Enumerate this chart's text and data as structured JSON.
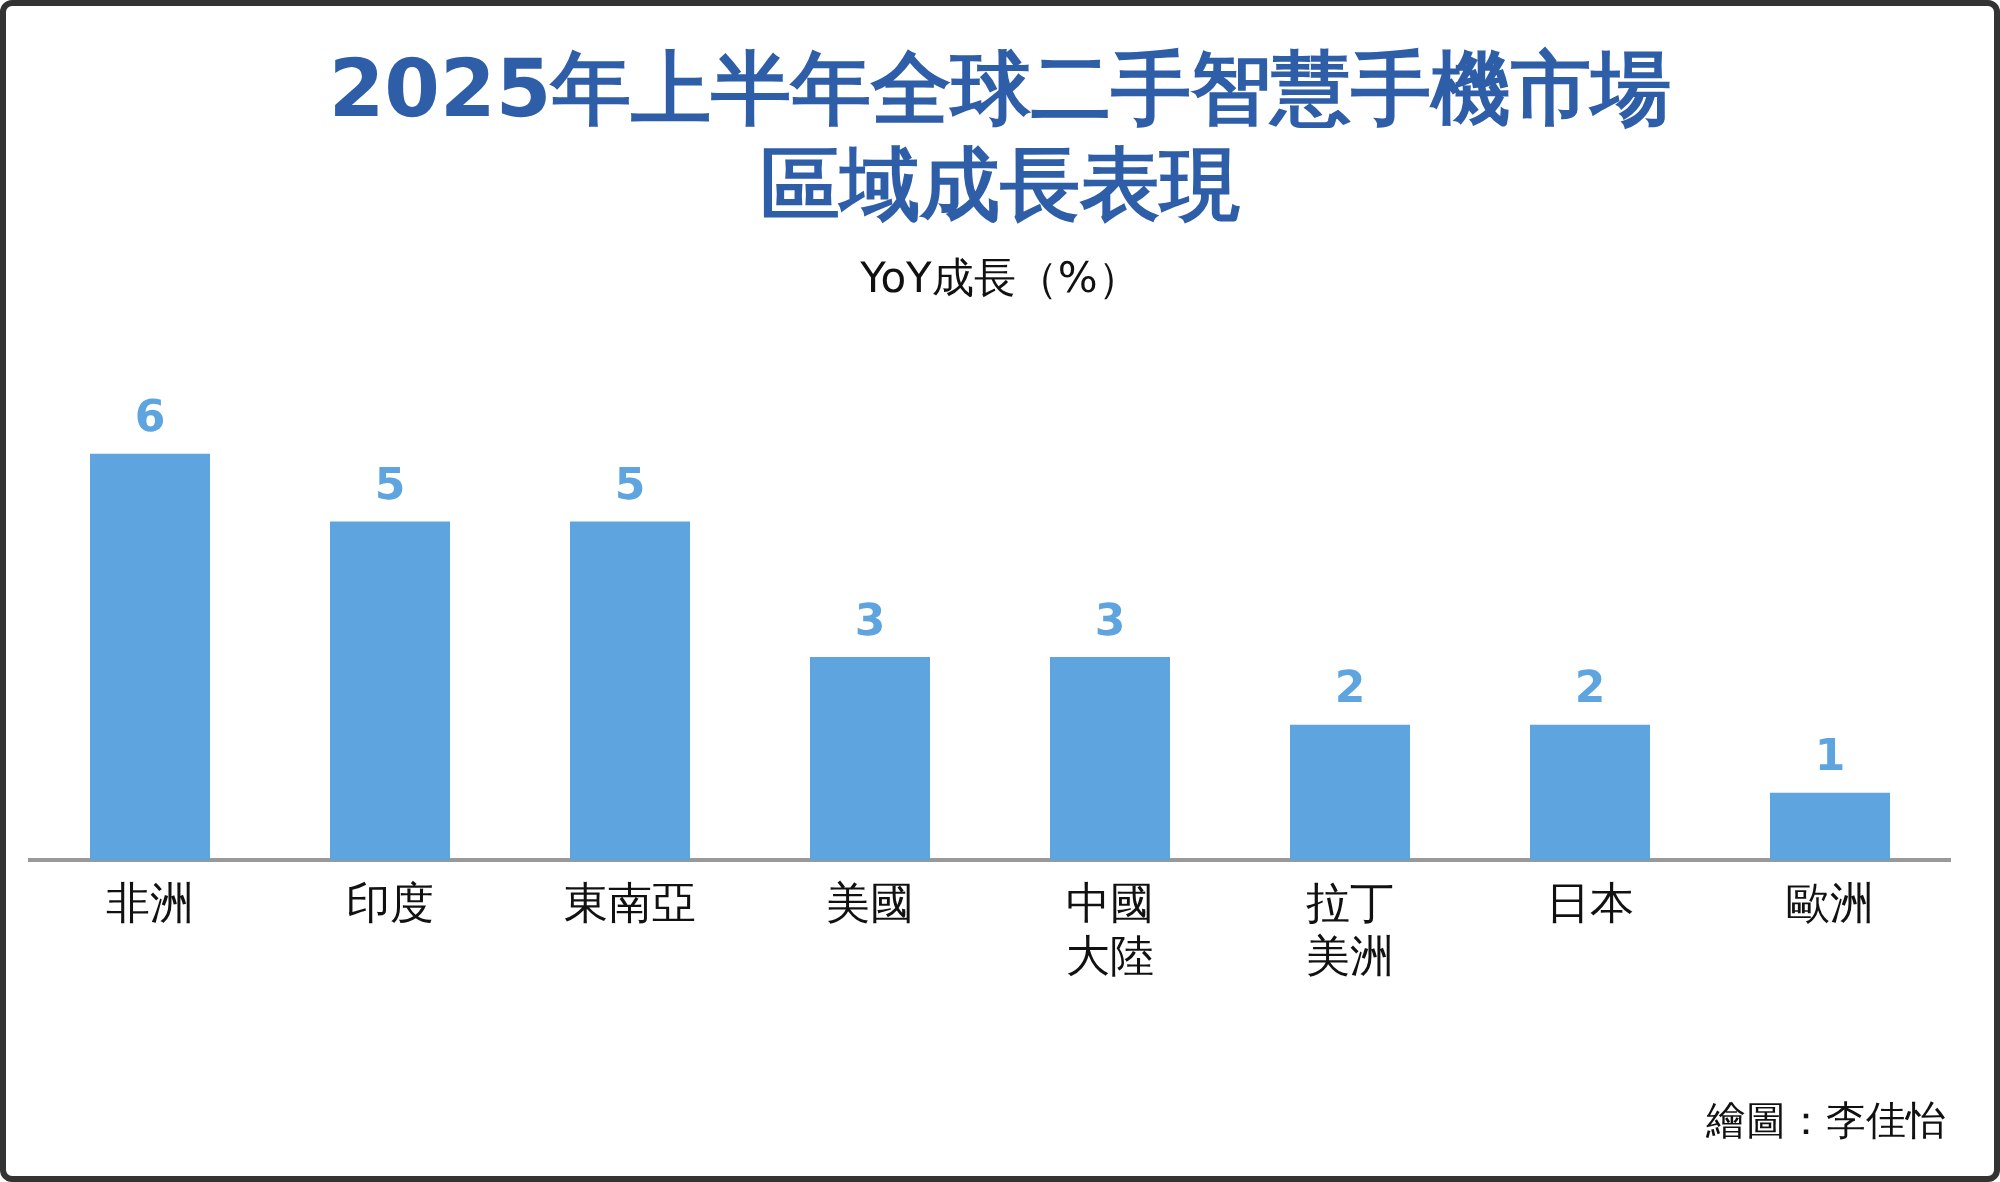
{
  "chart_data": {
    "type": "bar",
    "title": "2025年上半年全球二手智慧手機市場區域成長表現",
    "subtitle": "YoY成長（%）",
    "categories": [
      "非洲",
      "印度",
      "東南亞",
      "美國",
      "中國大陸",
      "拉丁美洲",
      "日本",
      "歐洲"
    ],
    "values": [
      6,
      5,
      5,
      3,
      3,
      2,
      2,
      1
    ],
    "color": "#5ea5e0",
    "data_labels": true,
    "grid": false,
    "legend": false,
    "annotations": [
      "繪圖：李佳怡"
    ]
  }
}
